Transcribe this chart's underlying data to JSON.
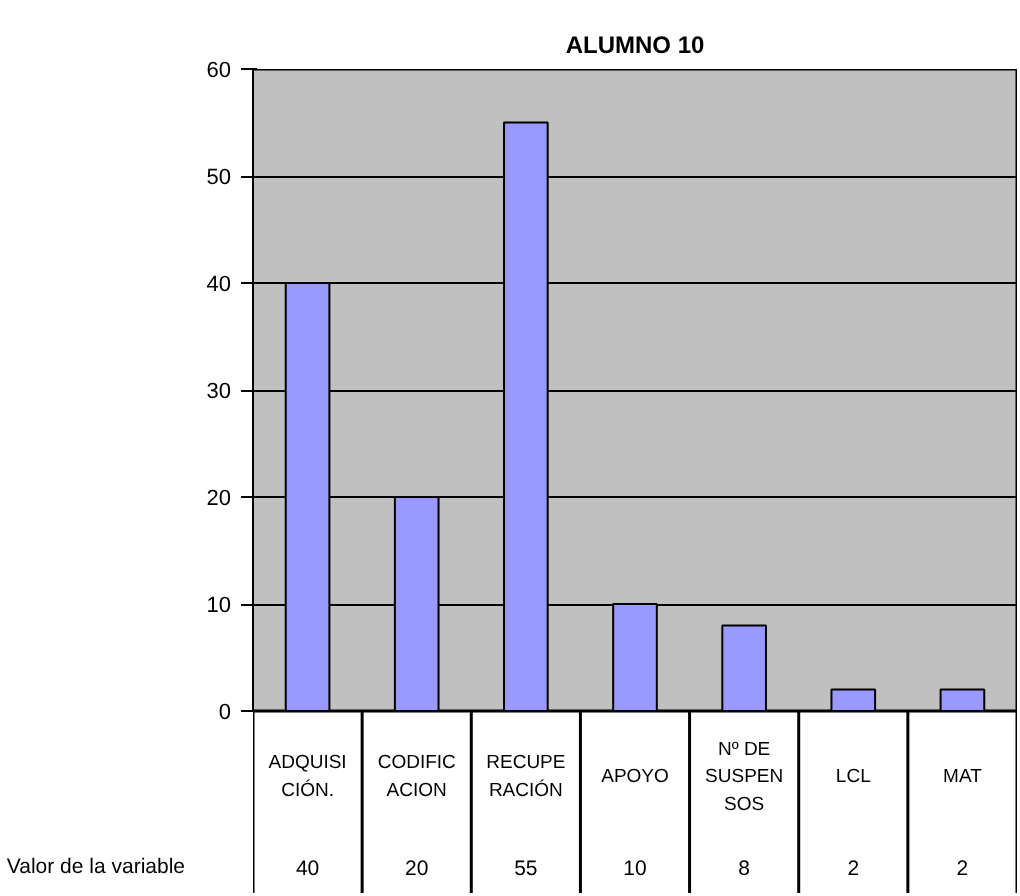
{
  "chart_data": {
    "type": "bar",
    "title": "ALUMNO 10",
    "categories": [
      "ADQUISI\nCIÓN.",
      "CODIFIC\nACION",
      "RECUPE\nRACIÓN",
      "APOYO",
      "Nº DE\nSUSPEN\nSOS",
      "LCL",
      "MAT"
    ],
    "values": [
      40,
      20,
      55,
      10,
      8,
      2,
      2
    ],
    "color": "#9999ff",
    "ylim": [
      0,
      60
    ],
    "yticks": [
      0,
      10,
      20,
      30,
      40,
      50,
      60
    ],
    "grid": "y",
    "data_labels": true,
    "annotations": [
      "Valor de la variable"
    ]
  }
}
